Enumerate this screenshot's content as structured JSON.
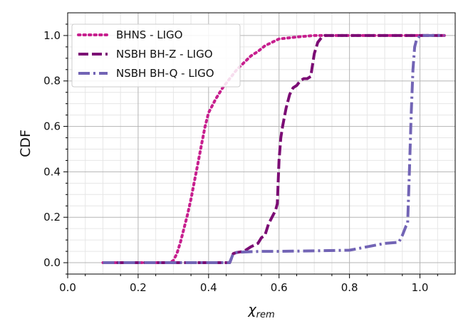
{
  "chart_data": {
    "type": "line",
    "title": "",
    "xlabel": "χ",
    "xlabel_sub": "rem",
    "ylabel": "CDF",
    "xlim": [
      0.0,
      1.1
    ],
    "ylim": [
      -0.05,
      1.1
    ],
    "xticks": [
      0.0,
      0.2,
      0.4,
      0.6,
      0.8,
      1.0
    ],
    "xtick_labels": [
      "0.0",
      "0.2",
      "0.4",
      "0.6",
      "0.8",
      "1.0"
    ],
    "yticks": [
      0.0,
      0.2,
      0.4,
      0.6,
      0.8,
      1.0
    ],
    "ytick_labels": [
      "0.0",
      "0.2",
      "0.4",
      "0.6",
      "0.8",
      "1.0"
    ],
    "grid": true,
    "minor_grid": true,
    "legend_position": "top-left",
    "series": [
      {
        "name": "BHNS - LIGO",
        "color": "#c71f8e",
        "style": "dotted",
        "x": [
          0.1,
          0.29,
          0.3,
          0.31,
          0.32,
          0.33,
          0.34,
          0.35,
          0.36,
          0.37,
          0.38,
          0.39,
          0.4,
          0.42,
          0.44,
          0.46,
          0.48,
          0.5,
          0.52,
          0.54,
          0.56,
          0.58,
          0.6,
          0.63,
          0.66,
          0.7,
          0.75,
          0.8,
          1.07
        ],
        "y": [
          0.0,
          0.0,
          0.01,
          0.04,
          0.09,
          0.15,
          0.21,
          0.28,
          0.36,
          0.44,
          0.52,
          0.6,
          0.66,
          0.72,
          0.77,
          0.81,
          0.85,
          0.88,
          0.91,
          0.93,
          0.955,
          0.97,
          0.985,
          0.99,
          0.995,
          1.0,
          1.0,
          1.0,
          1.0
        ]
      },
      {
        "name": "NSBH BH-Z - LIGO",
        "color": "#7b0c74",
        "style": "dashed",
        "x": [
          0.1,
          0.46,
          0.47,
          0.48,
          0.5,
          0.52,
          0.54,
          0.55,
          0.56,
          0.57,
          0.58,
          0.59,
          0.595,
          0.6,
          0.605,
          0.61,
          0.62,
          0.63,
          0.64,
          0.65,
          0.66,
          0.67,
          0.68,
          0.69,
          0.7,
          0.71,
          0.72,
          0.73,
          1.07
        ],
        "y": [
          0.0,
          0.0,
          0.04,
          0.045,
          0.05,
          0.07,
          0.085,
          0.11,
          0.12,
          0.17,
          0.2,
          0.23,
          0.26,
          0.45,
          0.55,
          0.6,
          0.68,
          0.74,
          0.77,
          0.78,
          0.8,
          0.81,
          0.81,
          0.82,
          0.92,
          0.97,
          0.99,
          1.0,
          1.0
        ]
      },
      {
        "name": "NSBH BH-Q - LIGO",
        "color": "#7264b5",
        "style": "dashdot",
        "x": [
          0.1,
          0.46,
          0.47,
          0.48,
          0.5,
          0.55,
          0.6,
          0.7,
          0.8,
          0.85,
          0.9,
          0.94,
          0.95,
          0.96,
          0.965,
          0.97,
          0.975,
          0.98,
          0.985,
          0.99,
          0.995,
          1.0,
          1.07
        ],
        "y": [
          0.0,
          0.0,
          0.04,
          0.045,
          0.047,
          0.05,
          0.05,
          0.052,
          0.055,
          0.07,
          0.085,
          0.09,
          0.12,
          0.16,
          0.17,
          0.4,
          0.65,
          0.85,
          0.95,
          0.98,
          0.99,
          1.0,
          1.0
        ]
      }
    ]
  }
}
